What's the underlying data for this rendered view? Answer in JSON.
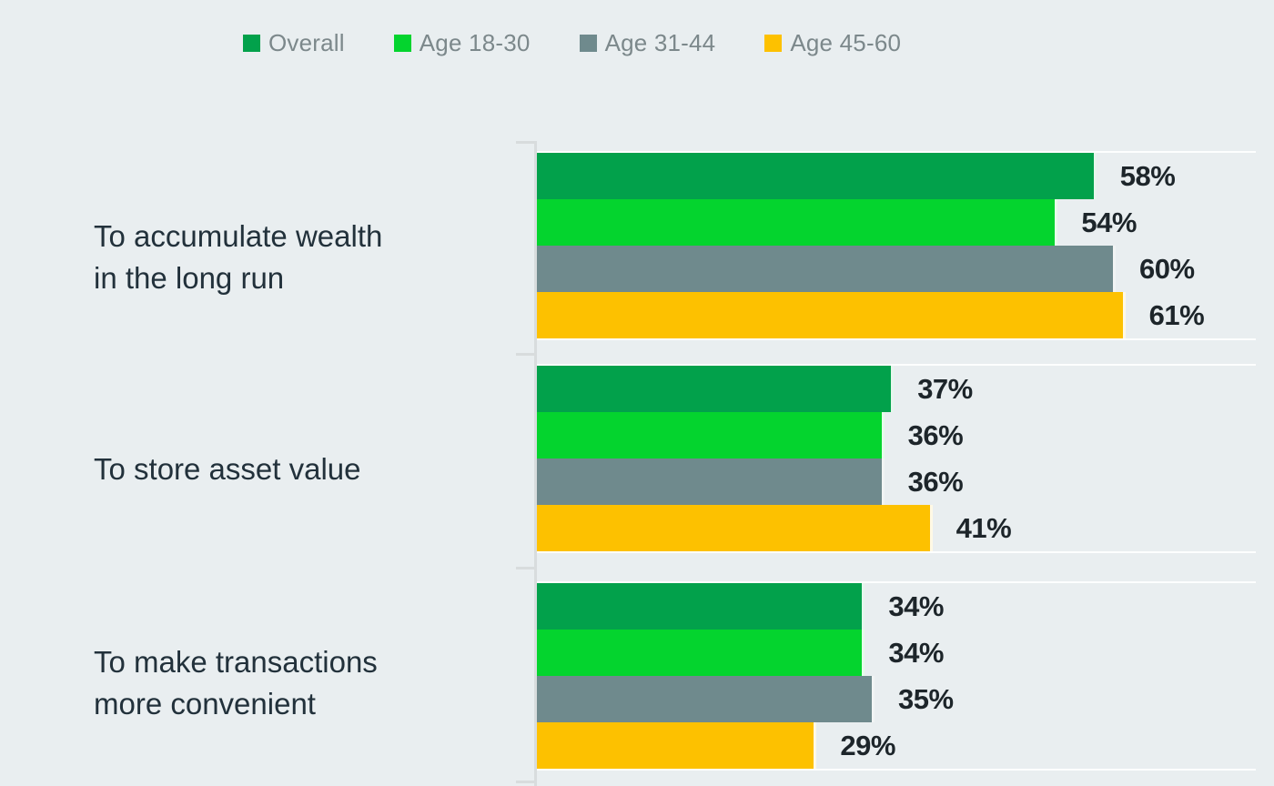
{
  "chart_data": {
    "type": "bar",
    "orientation": "horizontal",
    "title": "",
    "value_suffix": "%",
    "legend_position": "top",
    "grid": false,
    "background_color": "#e9eef0",
    "axis_color": "#d8dcdd",
    "value_label_color": "#1d252a",
    "category_label_color": "#22313b",
    "legend_text_color": "#7c888b",
    "categories": [
      {
        "label_lines": [
          "To accumulate wealth",
          "in the long run"
        ],
        "label": "To accumulate wealth in the long run"
      },
      {
        "label_lines": [
          "To store asset value"
        ],
        "label": "To store asset value"
      },
      {
        "label_lines": [
          "To make transactions",
          "more convenient"
        ],
        "label": "To make transactions more convenient"
      }
    ],
    "series": [
      {
        "name": "Overall",
        "color": "#02a14b",
        "values": [
          58,
          37,
          34
        ]
      },
      {
        "name": "Age 18-30",
        "color": "#04d42e",
        "values": [
          54,
          36,
          34
        ]
      },
      {
        "name": "Age 31-44",
        "color": "#6f8a8d",
        "values": [
          60,
          36,
          35
        ]
      },
      {
        "name": "Age 45-60",
        "color": "#fdc100",
        "values": [
          61,
          41,
          29
        ]
      }
    ]
  }
}
